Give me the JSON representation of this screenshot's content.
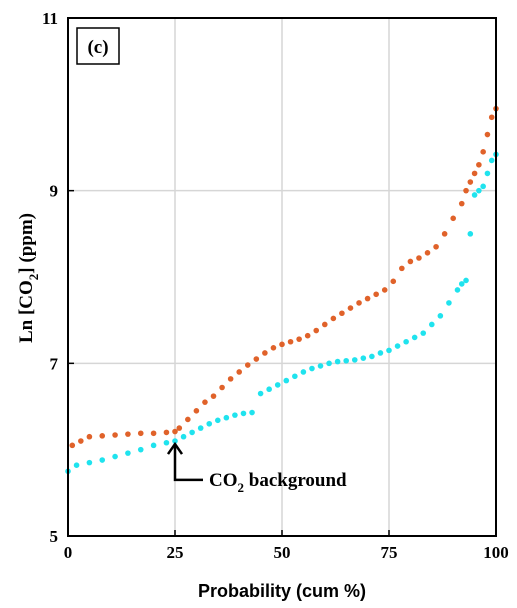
{
  "chart_data": {
    "type": "scatter",
    "panel_label": "(c)",
    "xlabel": "Probability (cum %)",
    "ylabel": "Ln [CO2] (ppm)",
    "ylabel_parts": {
      "pre": "Ln [CO",
      "sub": "2",
      "post": "] (ppm)"
    },
    "xlim": [
      0,
      100
    ],
    "ylim": [
      5,
      11
    ],
    "xticks": [
      0,
      25,
      50,
      75,
      100
    ],
    "yticks": [
      5,
      7,
      9,
      11
    ],
    "grid": true,
    "annotation": {
      "text_pre": "CO",
      "text_sub": "2",
      "text_post": " background",
      "arrow_x": 25,
      "arrow_y": 6.1,
      "text_y": 5.65
    },
    "series": [
      {
        "color": "#E0622A",
        "points": [
          [
            1,
            6.05
          ],
          [
            3,
            6.1
          ],
          [
            5,
            6.15
          ],
          [
            8,
            6.16
          ],
          [
            11,
            6.17
          ],
          [
            14,
            6.18
          ],
          [
            17,
            6.19
          ],
          [
            20,
            6.19
          ],
          [
            23,
            6.2
          ],
          [
            25,
            6.21
          ],
          [
            26,
            6.25
          ],
          [
            28,
            6.35
          ],
          [
            30,
            6.45
          ],
          [
            32,
            6.55
          ],
          [
            34,
            6.62
          ],
          [
            36,
            6.72
          ],
          [
            38,
            6.82
          ],
          [
            40,
            6.9
          ],
          [
            42,
            6.98
          ],
          [
            44,
            7.05
          ],
          [
            46,
            7.12
          ],
          [
            48,
            7.18
          ],
          [
            50,
            7.22
          ],
          [
            52,
            7.25
          ],
          [
            54,
            7.28
          ],
          [
            56,
            7.32
          ],
          [
            58,
            7.38
          ],
          [
            60,
            7.45
          ],
          [
            62,
            7.52
          ],
          [
            64,
            7.58
          ],
          [
            66,
            7.64
          ],
          [
            68,
            7.7
          ],
          [
            70,
            7.75
          ],
          [
            72,
            7.8
          ],
          [
            74,
            7.85
          ],
          [
            76,
            7.95
          ],
          [
            78,
            8.1
          ],
          [
            80,
            8.18
          ],
          [
            82,
            8.22
          ],
          [
            84,
            8.28
          ],
          [
            86,
            8.35
          ],
          [
            88,
            8.5
          ],
          [
            90,
            8.68
          ],
          [
            92,
            8.85
          ],
          [
            93,
            9.0
          ],
          [
            94,
            9.1
          ],
          [
            95,
            9.2
          ],
          [
            96,
            9.3
          ],
          [
            97,
            9.45
          ],
          [
            98,
            9.65
          ],
          [
            99,
            9.85
          ],
          [
            100,
            9.95
          ]
        ]
      },
      {
        "color": "#1FE3EE",
        "points": [
          [
            0,
            5.75
          ],
          [
            2,
            5.82
          ],
          [
            5,
            5.85
          ],
          [
            8,
            5.88
          ],
          [
            11,
            5.92
          ],
          [
            14,
            5.96
          ],
          [
            17,
            6.0
          ],
          [
            20,
            6.05
          ],
          [
            23,
            6.08
          ],
          [
            25,
            6.1
          ],
          [
            27,
            6.15
          ],
          [
            29,
            6.2
          ],
          [
            31,
            6.25
          ],
          [
            33,
            6.3
          ],
          [
            35,
            6.34
          ],
          [
            37,
            6.37
          ],
          [
            39,
            6.4
          ],
          [
            41,
            6.42
          ],
          [
            43,
            6.43
          ],
          [
            45,
            6.65
          ],
          [
            47,
            6.7
          ],
          [
            49,
            6.75
          ],
          [
            51,
            6.8
          ],
          [
            53,
            6.85
          ],
          [
            55,
            6.9
          ],
          [
            57,
            6.94
          ],
          [
            59,
            6.97
          ],
          [
            61,
            7.0
          ],
          [
            63,
            7.02
          ],
          [
            65,
            7.03
          ],
          [
            67,
            7.04
          ],
          [
            69,
            7.06
          ],
          [
            71,
            7.08
          ],
          [
            73,
            7.12
          ],
          [
            75,
            7.15
          ],
          [
            77,
            7.2
          ],
          [
            79,
            7.25
          ],
          [
            81,
            7.3
          ],
          [
            83,
            7.35
          ],
          [
            85,
            7.45
          ],
          [
            87,
            7.55
          ],
          [
            89,
            7.7
          ],
          [
            91,
            7.85
          ],
          [
            92,
            7.92
          ],
          [
            93,
            7.96
          ],
          [
            94,
            8.5
          ],
          [
            95,
            8.95
          ],
          [
            96,
            9.0
          ],
          [
            97,
            9.05
          ],
          [
            98,
            9.2
          ],
          [
            99,
            9.35
          ],
          [
            100,
            9.42
          ]
        ]
      }
    ]
  }
}
